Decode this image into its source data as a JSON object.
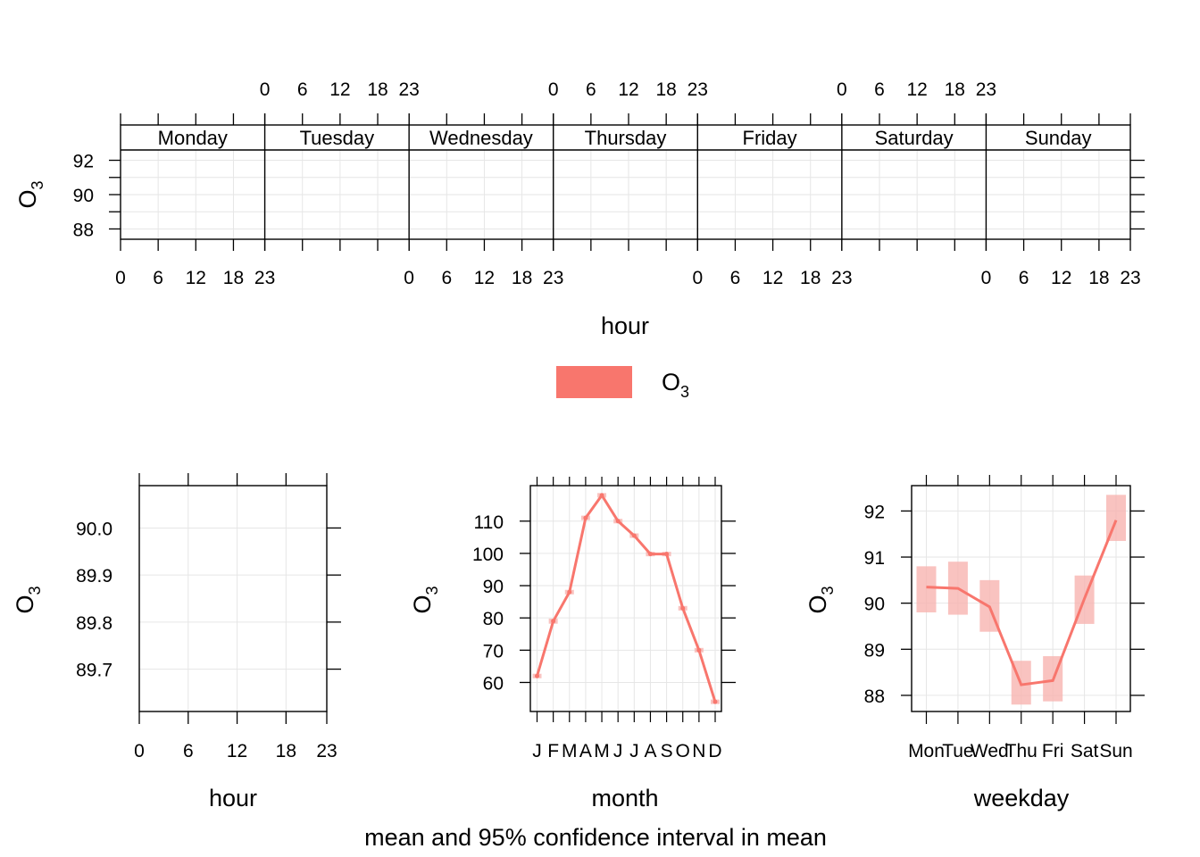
{
  "chart_data": [
    {
      "type": "line",
      "panel": "hour-by-weekday",
      "strips": [
        "Monday",
        "Tuesday",
        "Wednesday",
        "Thursday",
        "Friday",
        "Saturday",
        "Sunday"
      ],
      "x_ticks": [
        "0",
        "6",
        "12",
        "18",
        "23"
      ],
      "xlabel": "hour",
      "ylabel": "O",
      "ylabel_sub": "3",
      "y_ticks": [
        "88",
        "90",
        "92"
      ],
      "ylim": [
        87.4,
        92.6
      ],
      "series": []
    },
    {
      "type": "line",
      "panel": "hour",
      "xlabel": "hour",
      "ylabel": "O",
      "ylabel_sub": "3",
      "x_ticks": [
        "0",
        "6",
        "12",
        "18",
        "23"
      ],
      "y_ticks": [
        "89.7",
        "89.8",
        "89.9",
        "90.0"
      ],
      "ylim": [
        89.61,
        90.09
      ],
      "series": []
    },
    {
      "type": "line",
      "panel": "month",
      "xlabel": "month",
      "ylabel": "O",
      "ylabel_sub": "3",
      "categories": [
        "J",
        "F",
        "M",
        "A",
        "M",
        "J",
        "J",
        "A",
        "S",
        "O",
        "N",
        "D"
      ],
      "y_ticks": [
        "60",
        "70",
        "80",
        "90",
        "100",
        "110"
      ],
      "ylim": [
        51,
        121
      ],
      "series": [
        {
          "name": "O",
          "values": [
            62,
            79,
            88,
            111,
            118,
            110,
            105.5,
            99.8,
            99.8,
            83,
            70,
            54
          ],
          "lower": [
            61.3,
            78.2,
            87.3,
            110.3,
            117.3,
            109.3,
            104.8,
            99.1,
            99.1,
            82.3,
            69.3,
            53.3
          ],
          "upper": [
            62.7,
            79.8,
            88.7,
            111.7,
            118.7,
            110.7,
            106.2,
            100.5,
            100.5,
            83.7,
            70.7,
            54.7
          ]
        }
      ]
    },
    {
      "type": "line",
      "panel": "weekday",
      "xlabel": "weekday",
      "ylabel": "O",
      "ylabel_sub": "3",
      "categories": [
        "Mon",
        "Tue",
        "Wed",
        "Thu",
        "Fri",
        "Sat",
        "Sun"
      ],
      "y_ticks": [
        "88",
        "89",
        "90",
        "91",
        "92"
      ],
      "ylim": [
        87.65,
        92.55
      ],
      "series": [
        {
          "name": "O",
          "values": [
            90.35,
            90.32,
            89.92,
            88.23,
            88.32,
            90.1,
            91.8
          ],
          "lower": [
            89.8,
            89.75,
            89.38,
            87.8,
            87.87,
            89.55,
            91.35
          ],
          "upper": [
            90.8,
            90.9,
            90.5,
            88.75,
            88.85,
            90.6,
            92.35
          ]
        }
      ]
    }
  ],
  "legend": {
    "label": "O",
    "label_sub": "3",
    "color": "#F8766D"
  },
  "footer": "mean and 95% confidence interval in mean",
  "colors": {
    "series": "#F8766D",
    "band": "#F8B4B0",
    "grid": "#E6E6E6",
    "axis": "#000000"
  }
}
